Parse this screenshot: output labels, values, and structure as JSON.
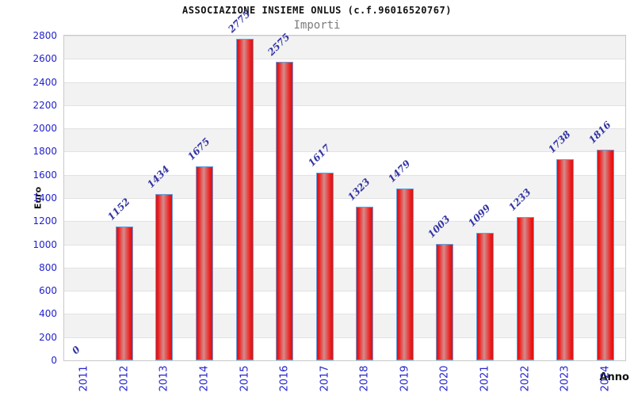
{
  "chart_data": {
    "type": "bar",
    "title": "ASSOCIAZIONE INSIEME ONLUS (c.f.96016520767)",
    "subtitle": "Importi",
    "xlabel": "Anno",
    "ylabel": "Euro",
    "categories": [
      "2011",
      "2012",
      "2013",
      "2014",
      "2015",
      "2016",
      "2017",
      "2018",
      "2019",
      "2020",
      "2021",
      "2022",
      "2023",
      "2024"
    ],
    "values": [
      0,
      1152,
      1434,
      1675,
      2775,
      2575,
      1617,
      1323,
      1479,
      1003,
      1099,
      1233,
      1738,
      1816
    ],
    "ylim": [
      0,
      2800
    ],
    "ytick_step": 200,
    "grid": "horizontal gridlines every 200, alternating white/gray bands",
    "legend_position": "none",
    "value_labels_shown": true,
    "colors": {
      "bar_fill_edge": "#d81414",
      "bar_fill_bright": "#ee1a1a",
      "bar_fill_center": "#d48c8c",
      "bar_border": "#64a0dc",
      "axis_tick_labels": "#2323cd",
      "value_labels": "#3434a4",
      "subtitle_text": "#7b7b7b",
      "band_gray": "#f2f2f2",
      "band_white": "#ffffff",
      "gridline": "#e2e2e2",
      "plot_border": "#c9c9c9",
      "title_text": "#111111"
    }
  }
}
